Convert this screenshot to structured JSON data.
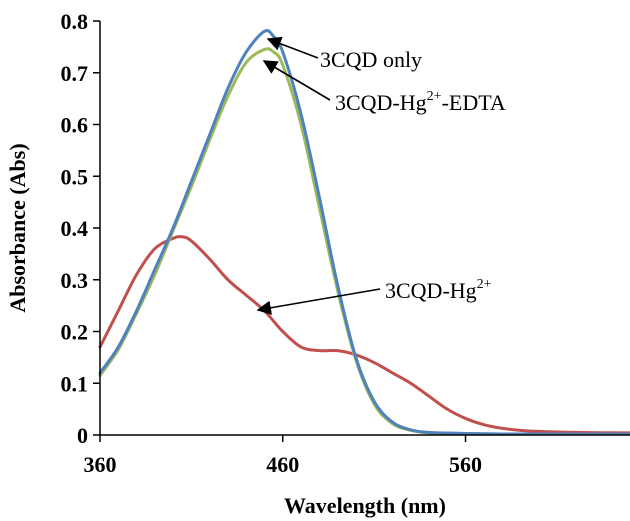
{
  "chart_data": {
    "type": "line",
    "xlabel": "Wavelength (nm)",
    "ylabel": "Absorbance (Abs)",
    "xlim": [
      360,
      650
    ],
    "ylim": [
      0,
      0.8
    ],
    "x_ticks": [
      360,
      460,
      560
    ],
    "y_ticks": [
      0,
      0.1,
      0.2,
      0.3,
      0.4,
      0.5,
      0.6,
      0.7,
      0.8
    ],
    "y_tick_labels": [
      "0",
      "0.1",
      "0.2",
      "0.3",
      "0.4",
      "0.5",
      "0.6",
      "0.7",
      "0.8"
    ],
    "grid": false,
    "legend": "none",
    "series": [
      {
        "name": "3CQD only",
        "color": "#4f81bd",
        "x": [
          360,
          370,
          380,
          390,
          400,
          410,
          420,
          430,
          440,
          450,
          455,
          460,
          470,
          480,
          490,
          500,
          510,
          520,
          530,
          540,
          560,
          580,
          600,
          650
        ],
        "y": [
          0.12,
          0.17,
          0.24,
          0.32,
          0.4,
          0.49,
          0.58,
          0.67,
          0.74,
          0.78,
          0.77,
          0.74,
          0.62,
          0.46,
          0.29,
          0.15,
          0.065,
          0.025,
          0.01,
          0.005,
          0.003,
          0.002,
          0.002,
          0.002
        ]
      },
      {
        "name": "3CQD-Hg2+-EDTA",
        "color": "#9bbb59",
        "x": [
          360,
          370,
          380,
          390,
          400,
          410,
          420,
          430,
          440,
          450,
          455,
          460,
          470,
          480,
          490,
          500,
          510,
          520,
          530,
          540,
          560,
          580,
          600,
          650
        ],
        "y": [
          0.115,
          0.165,
          0.235,
          0.31,
          0.395,
          0.48,
          0.57,
          0.655,
          0.72,
          0.745,
          0.74,
          0.715,
          0.6,
          0.44,
          0.28,
          0.145,
          0.06,
          0.022,
          0.009,
          0.004,
          0.003,
          0.002,
          0.002,
          0.002
        ]
      },
      {
        "name": "3CQD-Hg2+",
        "color": "#c0504d",
        "x": [
          360,
          370,
          380,
          390,
          400,
          405,
          410,
          420,
          430,
          440,
          450,
          460,
          470,
          480,
          490,
          500,
          510,
          520,
          530,
          540,
          550,
          560,
          570,
          580,
          590,
          600,
          620,
          650
        ],
        "y": [
          0.17,
          0.24,
          0.31,
          0.36,
          0.38,
          0.383,
          0.375,
          0.34,
          0.3,
          0.27,
          0.24,
          0.2,
          0.17,
          0.163,
          0.163,
          0.155,
          0.14,
          0.12,
          0.1,
          0.075,
          0.05,
          0.032,
          0.02,
          0.013,
          0.009,
          0.007,
          0.005,
          0.004
        ]
      }
    ],
    "annotations": {
      "a1_text": "3CQD only",
      "a2_prefix": "3CQD-Hg",
      "a2_sup": "2+",
      "a2_suffix": "-EDTA",
      "a3_prefix": "3CQD-Hg",
      "a3_sup": "2+"
    }
  }
}
